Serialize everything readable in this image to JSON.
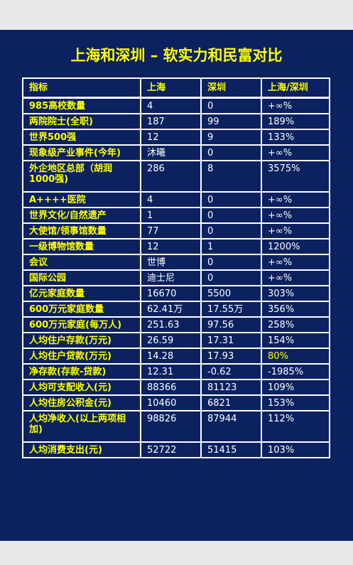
{
  "title": "上海和深圳 – 软实力和民富对比",
  "columns": [
    "指标",
    "上海",
    "深圳",
    "上海/深圳"
  ],
  "rows": [
    [
      "985高校数量",
      "4",
      "0",
      "+∞%"
    ],
    [
      "两院院士(全职)",
      "187",
      "99",
      "189%"
    ],
    [
      "世界500强",
      "12",
      "9",
      "133%"
    ],
    [
      "现象级产业事件(今年)",
      "沐曦",
      "0",
      "+∞%"
    ],
    [
      "外企地区总部（胡润1000强)",
      "286",
      "8",
      "3575%"
    ],
    [
      "A++++医院",
      "4",
      "0",
      "+∞%"
    ],
    [
      "世界文化/自然遗产",
      "1",
      "0",
      "+∞%"
    ],
    [
      "大使馆/领事馆数量",
      "77",
      "0",
      "+∞%"
    ],
    [
      "一级博物馆数量",
      "12",
      "1",
      "1200%"
    ],
    [
      "会议",
      "世博",
      "0",
      "+∞%"
    ],
    [
      "国际公园",
      "迪士尼",
      "0",
      "+∞%"
    ],
    [
      "亿元家庭数量",
      "16670",
      "5500",
      "303%"
    ],
    [
      "600万元家庭数量",
      "62.41万",
      "17.55万",
      "356%"
    ],
    [
      "600万元家庭(每万人)",
      "251.63",
      "97.56",
      "258%"
    ],
    [
      "人均住户存款(万元)",
      "26.59",
      "17.31",
      "154%"
    ],
    [
      "人均住户贷款(万元)",
      "14.28",
      "17.93",
      "80%"
    ],
    [
      "净存款(存款-贷款)",
      "12.31",
      "-0.62",
      "-1985%"
    ],
    [
      "人均可支配收入(元)",
      "88366",
      "81123",
      "109%"
    ],
    [
      "人均住房公积金(元)",
      "10460",
      "6821",
      "153%"
    ],
    [
      "人均净收入(以上两项相加)",
      "98826",
      "87944",
      "112%"
    ],
    [
      "人均消费支出(元)",
      "52722",
      "51415",
      "103%"
    ]
  ]
}
